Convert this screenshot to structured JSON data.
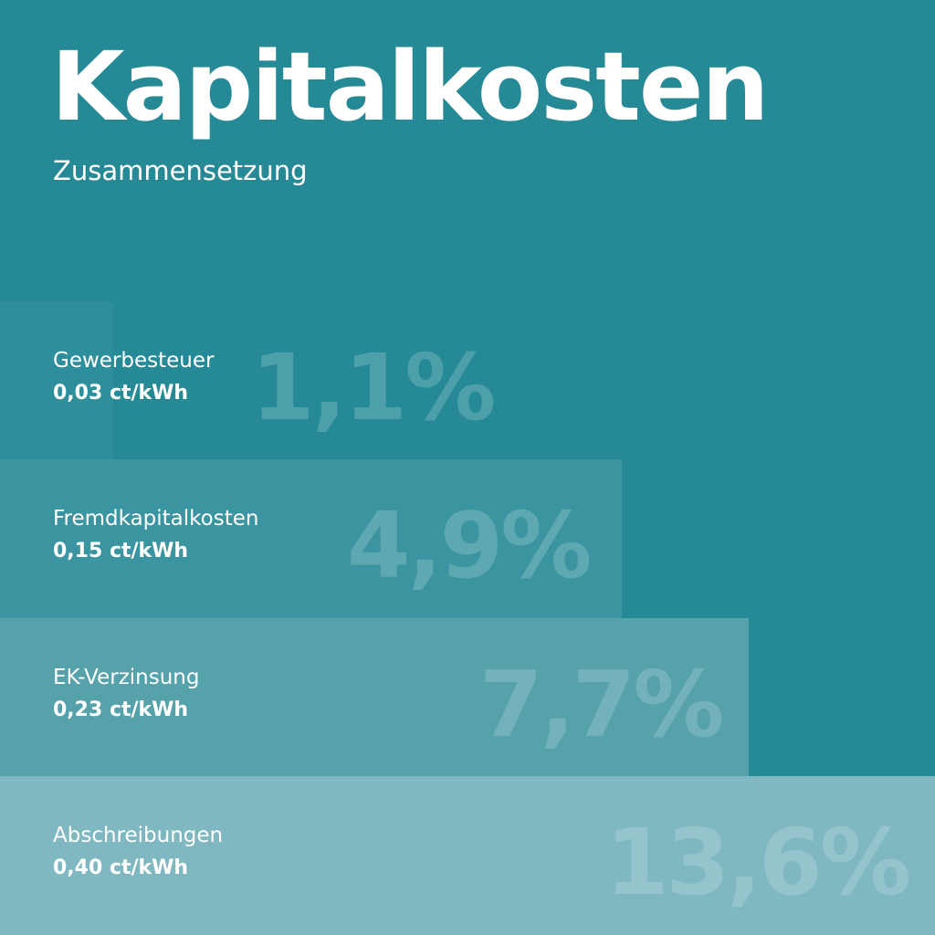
{
  "header": {
    "title": "Kapitalkosten",
    "subtitle": "Zusammensetzung"
  },
  "items": [
    {
      "label": "Gewerbesteuer",
      "value": "0,03 ct/kWh",
      "share": "1,1%"
    },
    {
      "label": "Fremdkapitalkosten",
      "value": "0,15 ct/kWh",
      "share": "4,9%"
    },
    {
      "label": "EK-Verzinsung",
      "value": "0,23 ct/kWh",
      "share": "7,7%"
    },
    {
      "label": "Abschreibungen",
      "value": "0,40 ct/kWh",
      "share": "13,6%"
    }
  ]
}
